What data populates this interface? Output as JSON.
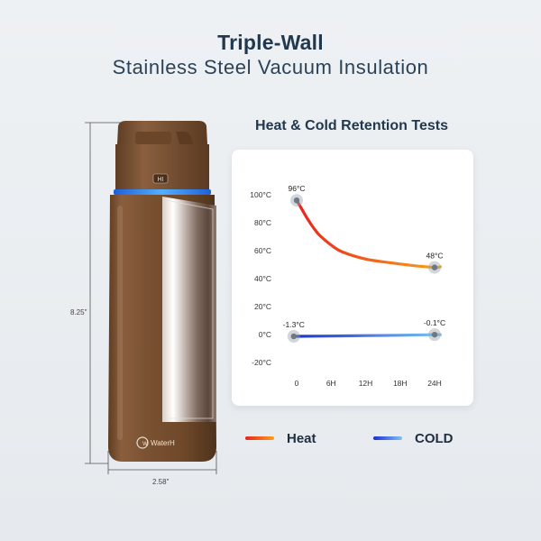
{
  "header": {
    "title": "Triple-Wall",
    "subtitle": "Stainless Steel Vacuum Insulation"
  },
  "bottle": {
    "height_label": "8.25\"",
    "width_label": "2.58\"",
    "cap_label": "HI",
    "brand": "WaterH",
    "body_color": "#7b5234",
    "ring_color": "#2f8cff"
  },
  "chart_data": {
    "type": "line",
    "title": "Heat & Cold Retention Tests",
    "x_ticks": [
      "0",
      "6H",
      "12H",
      "18H",
      "24H"
    ],
    "x_values": [
      0,
      6,
      12,
      18,
      24
    ],
    "y_ticks": [
      "100°C",
      "80°C",
      "60°C",
      "40°C",
      "20°C",
      "0°C",
      "-20°C"
    ],
    "y_tick_values": [
      100,
      80,
      60,
      40,
      20,
      0,
      -20
    ],
    "ylim": [
      -20,
      100
    ],
    "xlim": [
      0,
      24
    ],
    "grid": false,
    "series": [
      {
        "name": "Heat",
        "color_start": "#e8231d",
        "color_end": "#f7a21b",
        "points": [
          [
            0,
            96
          ],
          [
            1,
            89
          ],
          [
            2,
            82
          ],
          [
            3,
            76
          ],
          [
            4,
            71
          ],
          [
            6,
            64
          ],
          [
            8,
            59
          ],
          [
            12,
            54
          ],
          [
            16,
            51.5
          ],
          [
            20,
            49.5
          ],
          [
            24,
            48
          ],
          [
            25,
            48.5
          ]
        ],
        "start_label": "96°C",
        "end_label": "48°C"
      },
      {
        "name": "COLD",
        "color_start": "#1a2fd6",
        "color_end": "#7cc3f2",
        "points": [
          [
            -0.5,
            -1.3
          ],
          [
            6,
            -1.1
          ],
          [
            12,
            -0.8
          ],
          [
            18,
            -0.5
          ],
          [
            24,
            -0.1
          ],
          [
            25,
            -0.1
          ]
        ],
        "start_label": "-1.3°C",
        "end_label": "-0.1°C"
      }
    ],
    "legend_position": "bottom"
  },
  "legend": {
    "heat_label": "Heat",
    "cold_label": "COLD"
  }
}
